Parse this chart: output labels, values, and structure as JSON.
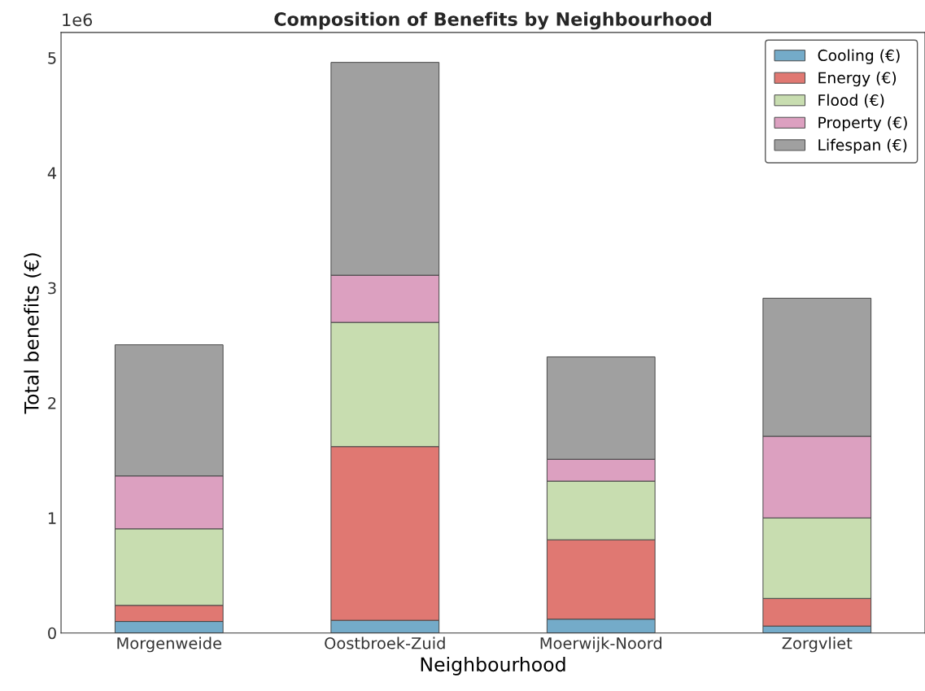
{
  "chart_data": {
    "type": "bar",
    "title": "Composition of Benefits by Neighbourhood",
    "xlabel": "Neighbourhood",
    "ylabel": "Total benefits (€)",
    "categories": [
      "Morgenweide",
      "Oostbroek-Zuid",
      "Moerwijk-Noord",
      "Zorgvliet"
    ],
    "stacked": true,
    "series": [
      {
        "name": "Cooling (€)",
        "color": "#74abc9",
        "values": [
          0.1,
          0.11,
          0.12,
          0.06
        ]
      },
      {
        "name": "Energy (€)",
        "color": "#e07872",
        "values": [
          0.14,
          1.51,
          0.69,
          0.24
        ]
      },
      {
        "name": "Flood (€)",
        "color": "#c8ddb0",
        "values": [
          0.665,
          1.08,
          0.51,
          0.7
        ]
      },
      {
        "name": "Property (€)",
        "color": "#dca0c0",
        "values": [
          0.46,
          0.41,
          0.19,
          0.71
        ]
      },
      {
        "name": "Lifespan (€)",
        "color": "#a0a0a0",
        "values": [
          1.14,
          1.85,
          0.89,
          1.2
        ]
      }
    ],
    "ylim": [
      0,
      5.22
    ],
    "yticks": [
      0,
      1,
      2,
      3,
      4,
      5
    ],
    "annotations": [
      "1e6"
    ],
    "legend": "top right",
    "grid": false
  }
}
